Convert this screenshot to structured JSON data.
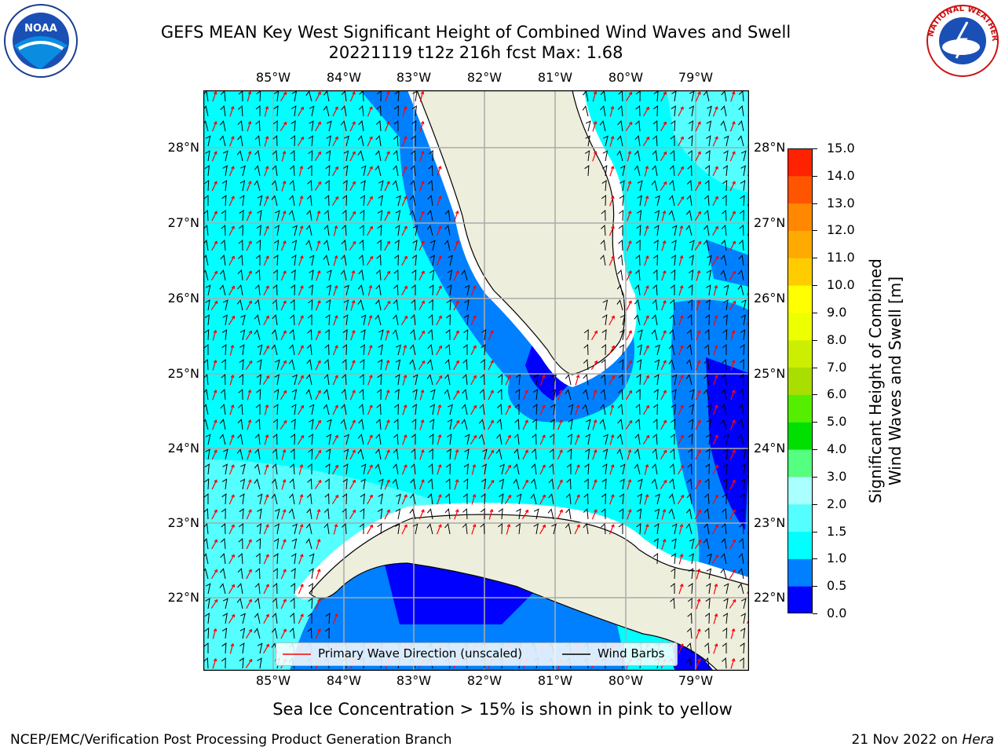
{
  "title": {
    "line1": "GEFS MEAN Key West Significant Height of Combined Wind Waves and Swell",
    "line2": "20221119 t12z 216h fcst   Max: 1.68"
  },
  "logos": {
    "left": "NOAA",
    "right": "NATIONAL WEATHER SERVICE"
  },
  "map": {
    "lon_labels": [
      "85°W",
      "84°W",
      "83°W",
      "82°W",
      "81°W",
      "80°W",
      "79°W"
    ],
    "lat_labels": [
      "28°N",
      "27°N",
      "26°N",
      "25°N",
      "24°N",
      "23°N",
      "22°N"
    ],
    "ocean_color": "#00ffff",
    "land_color": "#eeeedd",
    "grid": true
  },
  "legend": {
    "wave_label": "Primary Wave Direction (unscaled)",
    "barb_label": "Wind Barbs"
  },
  "colorbar": {
    "label_line1": "Significant Height of Combined",
    "label_line2": "Wind Waves and Swell [m]",
    "ticks": [
      "0.0",
      "0.5",
      "1.0",
      "1.5",
      "2.0",
      "3.0",
      "4.0",
      "5.0",
      "6.0",
      "7.0",
      "8.0",
      "9.0",
      "10.0",
      "11.0",
      "12.0",
      "13.0",
      "14.0",
      "15.0"
    ],
    "colors": [
      "#0000ff",
      "#0080ff",
      "#00ffff",
      "#55ffff",
      "#aaffff",
      "#55ff80",
      "#00e000",
      "#55ee00",
      "#aadd00",
      "#ccee00",
      "#eeff00",
      "#ffff00",
      "#ffcc00",
      "#ffaa00",
      "#ff8800",
      "#ff5500",
      "#ff2200"
    ]
  },
  "subnote": "Sea Ice Concentration > 15% is shown in pink to yellow",
  "footer": {
    "left": "NCEP/EMC/Verification Post Processing Product Generation Branch",
    "right_date": "21 Nov 2022 on ",
    "right_host": "Hera"
  }
}
